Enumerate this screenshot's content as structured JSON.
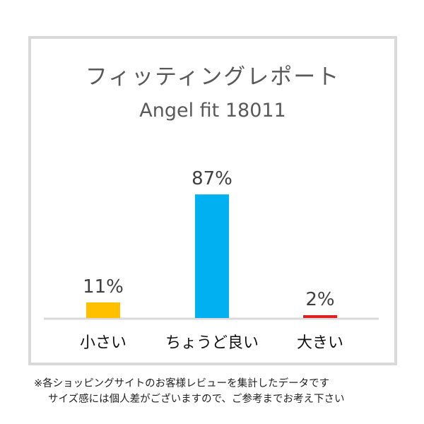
{
  "chart_data": {
    "type": "bar",
    "title": "フィッティングレポート",
    "subtitle": "Angel fit 18011",
    "categories": [
      "小さい",
      "ちょうど良い",
      "大きい"
    ],
    "values": [
      11,
      87,
      2
    ],
    "value_labels": [
      "11%",
      "87%",
      "2%"
    ],
    "unit": "%",
    "ylim": [
      0,
      100
    ],
    "colors": [
      "#ffc000",
      "#00b0f0",
      "#e02020"
    ],
    "grid": false,
    "axis_color": "#d9d9d9"
  },
  "footnote": {
    "line1": "※各ショッピングサイトのお客様レビューを集計したデータです",
    "line2": "サイズ感には個人差がございますので、ご参考までお考え下さい"
  }
}
